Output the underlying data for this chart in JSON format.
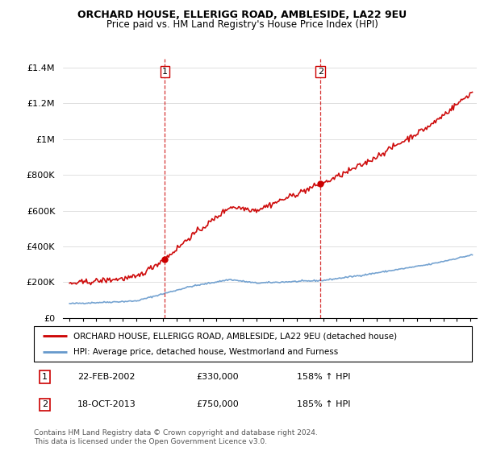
{
  "title": "ORCHARD HOUSE, ELLERIGG ROAD, AMBLESIDE, LA22 9EU",
  "subtitle": "Price paid vs. HM Land Registry's House Price Index (HPI)",
  "legend_line1": "ORCHARD HOUSE, ELLERIGG ROAD, AMBLESIDE, LA22 9EU (detached house)",
  "legend_line2": "HPI: Average price, detached house, Westmorland and Furness",
  "sale1_date": "22-FEB-2002",
  "sale1_price": 330000,
  "sale1_hpi": "158% ↑ HPI",
  "sale2_date": "18-OCT-2013",
  "sale2_price": 750000,
  "sale2_hpi": "185% ↑ HPI",
  "footer": "Contains HM Land Registry data © Crown copyright and database right 2024.\nThis data is licensed under the Open Government Licence v3.0.",
  "red_color": "#cc0000",
  "blue_color": "#6699cc",
  "sale1_x": 2002.14,
  "sale2_x": 2013.79,
  "ylim_max": 1450000,
  "yticks": [
    0,
    200000,
    400000,
    600000,
    800000,
    1000000,
    1200000,
    1400000
  ],
  "ytick_labels": [
    "£0",
    "£200K",
    "£400K",
    "£600K",
    "£800K",
    "£1M",
    "£1.2M",
    "£1.4M"
  ]
}
